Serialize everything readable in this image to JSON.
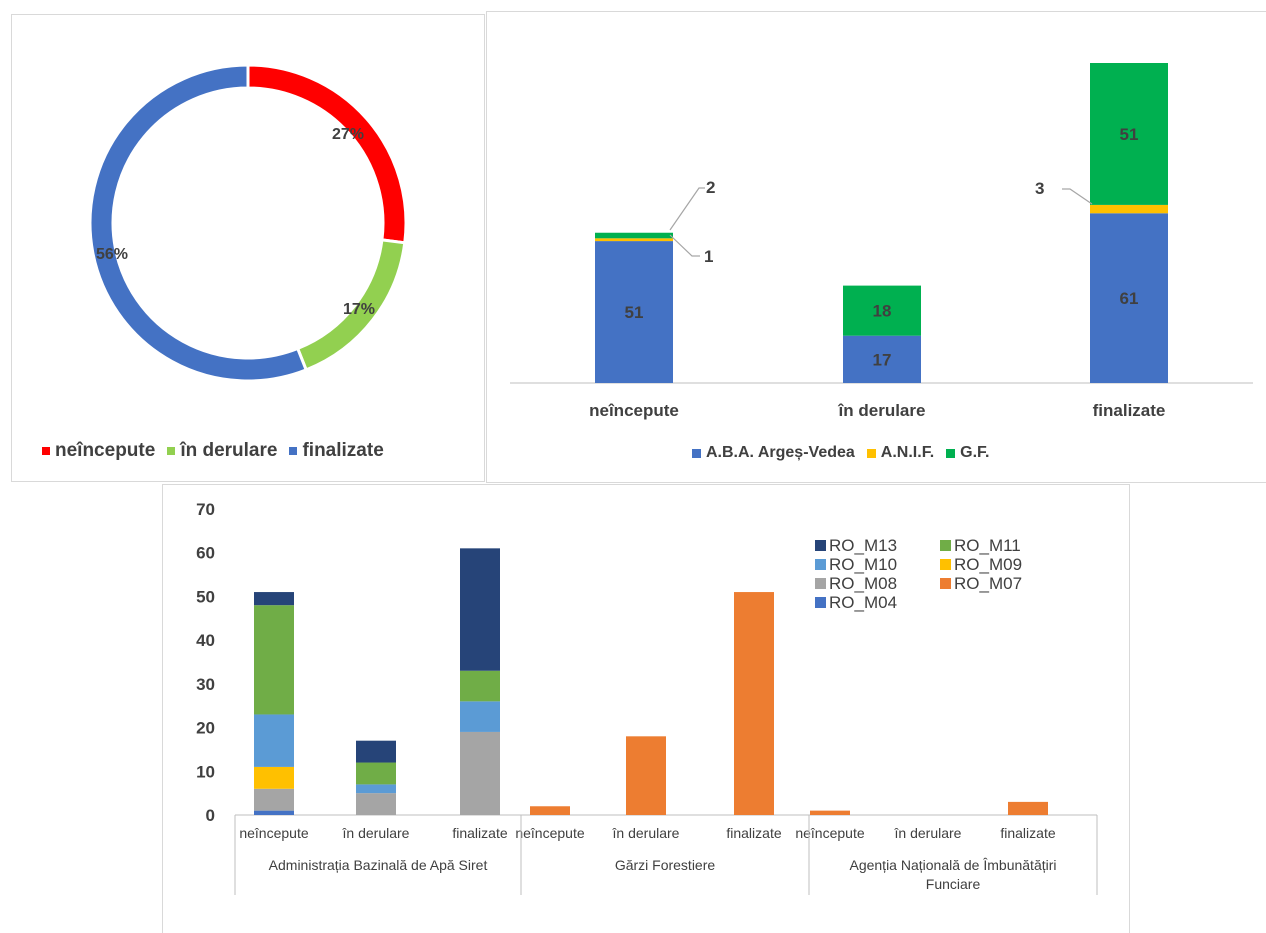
{
  "colors": {
    "red": "#ff0000",
    "light_green": "#92d050",
    "blue": "#4472c4",
    "yellow": "#ffc000",
    "green": "#00b050",
    "dark_blue": "#264478",
    "moss_green": "#70ad47",
    "sky_blue": "#5b9bd5",
    "gray": "#a5a5a5",
    "orange": "#ed7d31",
    "text": "#404040",
    "axis": "#bfbfbf"
  },
  "chart_data": [
    {
      "type": "pie",
      "variant": "donut",
      "categories": [
        "neîncepute",
        "în derulare",
        "finalizate"
      ],
      "values": [
        27,
        17,
        56
      ],
      "labels": [
        "27%",
        "17%",
        "56%"
      ],
      "legend_position": "bottom"
    },
    {
      "type": "bar",
      "stacked": true,
      "categories": [
        "neîncepute",
        "în derulare",
        "finalizate"
      ],
      "series": [
        {
          "name": "A.B.A. Argeș-Vedea",
          "values": [
            51,
            17,
            61
          ]
        },
        {
          "name": "A.N.I.F.",
          "values": [
            1,
            0,
            3
          ]
        },
        {
          "name": "G.F.",
          "values": [
            2,
            18,
            51
          ]
        }
      ],
      "data_labels": [
        [
          "51",
          "1",
          "2"
        ],
        [
          "17",
          "",
          "18"
        ],
        [
          "61",
          "3",
          "51"
        ]
      ],
      "legend_position": "bottom",
      "grid": false
    },
    {
      "type": "bar",
      "stacked": true,
      "groups": [
        {
          "name": "Administrația Bazinală de Apă Siret",
          "categories": [
            "neîncepute",
            "în derulare",
            "finalizate"
          ]
        },
        {
          "name": "Gărzi Forestiere",
          "categories": [
            "neîncepute",
            "în derulare",
            "finalizate"
          ]
        },
        {
          "name_lines": [
            "Agenția Națională de Îmbunătățiri",
            "Funciare"
          ],
          "categories": [
            "neîncepute",
            "în derulare",
            "finalizate"
          ]
        }
      ],
      "series": [
        {
          "name": "RO_M04",
          "values": [
            1,
            0,
            0,
            0,
            0,
            0,
            0,
            0,
            0
          ]
        },
        {
          "name": "RO_M08",
          "values": [
            5,
            5,
            19,
            0,
            0,
            0,
            0,
            0,
            0
          ]
        },
        {
          "name": "RO_M09",
          "values": [
            5,
            0,
            0,
            0,
            0,
            0,
            0,
            0,
            0
          ]
        },
        {
          "name": "RO_M10",
          "values": [
            12,
            2,
            7,
            0,
            0,
            0,
            0,
            0,
            0
          ]
        },
        {
          "name": "RO_M11",
          "values": [
            25,
            5,
            7,
            0,
            0,
            0,
            0,
            0,
            0
          ]
        },
        {
          "name": "RO_M13",
          "values": [
            3,
            5,
            28,
            0,
            0,
            0,
            0,
            0,
            0
          ]
        },
        {
          "name": "RO_M07",
          "values": [
            0,
            0,
            0,
            2,
            18,
            51,
            1,
            0,
            3
          ]
        }
      ],
      "legend": [
        "RO_M13",
        "RO_M11",
        "RO_M10",
        "RO_M09",
        "RO_M08",
        "RO_M07",
        "RO_M04"
      ],
      "yticks": [
        "0",
        "10",
        "20",
        "30",
        "40",
        "50",
        "60",
        "70"
      ],
      "ylim": [
        0,
        70
      ],
      "legend_position": "top-right",
      "grid": false
    }
  ]
}
